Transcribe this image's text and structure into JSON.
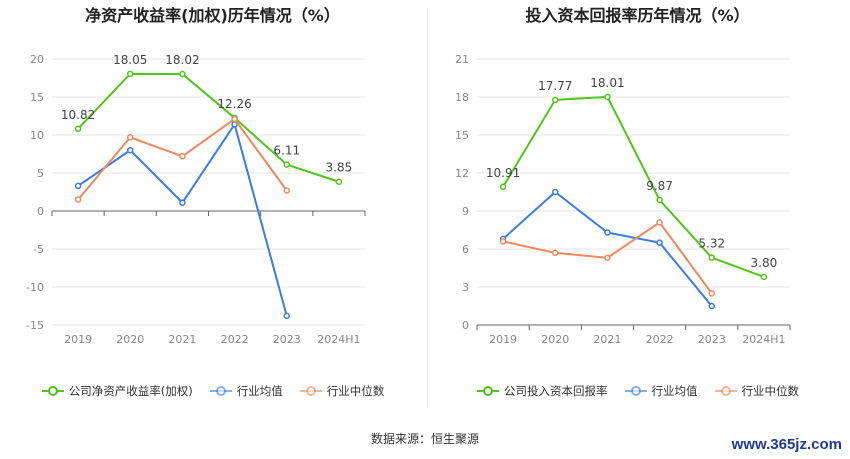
{
  "chart_data": [
    {
      "type": "line",
      "title": "净资产收益率(加权)历年情况（%）",
      "categories": [
        "2019",
        "2020",
        "2021",
        "2022",
        "2023",
        "2024H1"
      ],
      "ylim": [
        -15,
        20
      ],
      "yticks": [
        20,
        15,
        10,
        5,
        0,
        -5,
        -10,
        -15
      ],
      "grid": true,
      "legend_position": "bottom",
      "series": [
        {
          "name": "公司净资产收益率(加权)",
          "color": "#52c41a",
          "labeled": true,
          "values": [
            10.82,
            18.05,
            18.02,
            12.26,
            6.11,
            3.85
          ],
          "labels": [
            "10.82",
            "18.05",
            "18.02",
            "12.26",
            "6.11",
            "3.85"
          ]
        },
        {
          "name": "行业均值",
          "color": "#3b7be5",
          "labeled": false,
          "values": [
            3.3,
            8.0,
            1.1,
            11.4,
            -13.8,
            null
          ]
        },
        {
          "name": "行业中位数",
          "color": "#f2875b",
          "labeled": false,
          "values": [
            1.5,
            9.7,
            7.2,
            12.1,
            2.7,
            null
          ]
        }
      ]
    },
    {
      "type": "line",
      "title": "投入资本回报率历年情况（%）",
      "categories": [
        "2019",
        "2020",
        "2021",
        "2022",
        "2023",
        "2024H1"
      ],
      "ylim": [
        0,
        21
      ],
      "yticks": [
        21,
        18,
        15,
        12,
        9,
        6,
        3,
        0
      ],
      "grid": true,
      "legend_position": "bottom",
      "series": [
        {
          "name": "公司投入资本回报率",
          "color": "#52c41a",
          "labeled": true,
          "values": [
            10.91,
            17.77,
            18.01,
            9.87,
            5.32,
            3.8
          ],
          "labels": [
            "10.91",
            "17.77",
            "18.01",
            "9.87",
            "5.32",
            "3.80"
          ]
        },
        {
          "name": "行业均值",
          "color": "#3b7be5",
          "labeled": false,
          "values": [
            6.8,
            10.5,
            7.3,
            6.5,
            1.5,
            null
          ]
        },
        {
          "name": "行业中位数",
          "color": "#f2875b",
          "labeled": false,
          "values": [
            6.6,
            5.7,
            5.3,
            8.1,
            2.5,
            null
          ]
        }
      ]
    }
  ],
  "source": "数据来源：恒生聚源",
  "watermark": "www.365jz.com"
}
